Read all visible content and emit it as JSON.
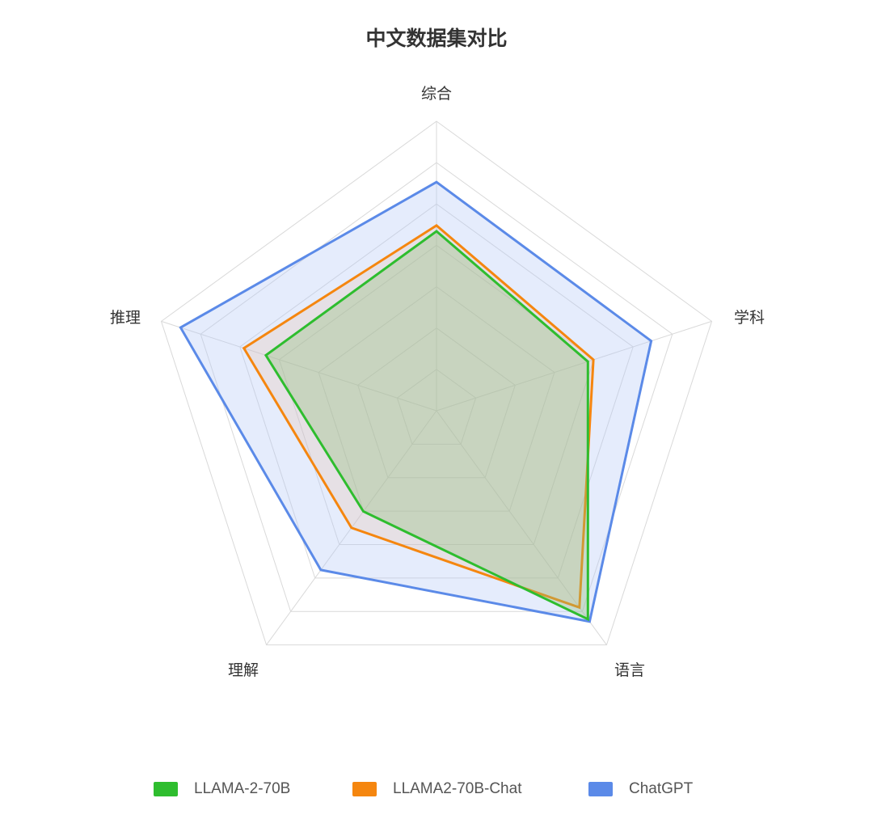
{
  "chart_data": {
    "type": "radar",
    "title": "中文数据集对比",
    "axes": [
      "综合",
      "学科",
      "语言",
      "理解",
      "推理"
    ],
    "max": 1.0,
    "grid_levels": 7,
    "series": [
      {
        "name": "LLAMA-2-70B",
        "values": [
          0.62,
          0.55,
          0.89,
          0.43,
          0.62
        ],
        "color": "#2ebd2e",
        "fill": "rgba(144,190,120,0.35)"
      },
      {
        "name": "LLAMA2-70B-Chat",
        "values": [
          0.64,
          0.57,
          0.84,
          0.5,
          0.7
        ],
        "color": "#f5860f",
        "fill": "rgba(240,170,130,0.18)"
      },
      {
        "name": "ChatGPT",
        "values": [
          0.79,
          0.78,
          0.9,
          0.68,
          0.93
        ],
        "color": "#5b8ae8",
        "fill": "rgba(180,200,245,0.35)"
      }
    ]
  }
}
